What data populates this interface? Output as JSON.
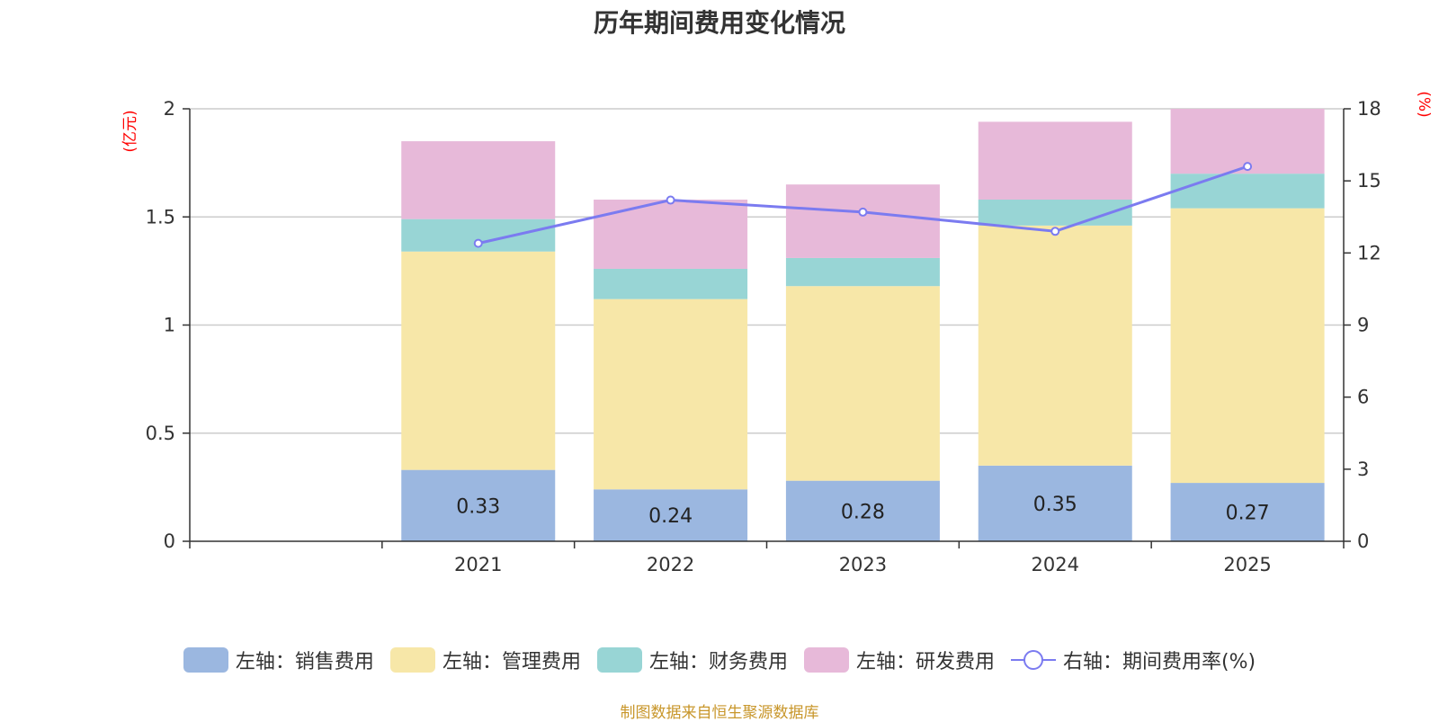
{
  "chart_data": {
    "type": "bar",
    "title": "历年期间费用变化情况",
    "categories": [
      "",
      "2021",
      "2022",
      "2023",
      "2024",
      "2025"
    ],
    "series": [
      {
        "name": "左轴：销售费用",
        "axis": "left",
        "stack": "total",
        "color": "#9bb7e0",
        "values": [
          null,
          0.33,
          0.24,
          0.28,
          0.35,
          0.27
        ],
        "labels": [
          "",
          "0.33",
          "0.24",
          "0.28",
          "0.35",
          "0.27"
        ]
      },
      {
        "name": "左轴：管理费用",
        "axis": "left",
        "stack": "total",
        "color": "#f7e7a8",
        "values": [
          null,
          1.01,
          0.88,
          0.9,
          1.11,
          1.27
        ]
      },
      {
        "name": "左轴：财务费用",
        "axis": "left",
        "stack": "total",
        "color": "#98d5d5",
        "values": [
          null,
          0.15,
          0.14,
          0.13,
          0.12,
          0.16
        ]
      },
      {
        "name": "左轴：研发费用",
        "axis": "left",
        "stack": "total",
        "color": "#e7b9d9",
        "values": [
          null,
          0.36,
          0.32,
          0.34,
          0.36,
          0.3
        ]
      },
      {
        "name": "右轴：期间费用率(%)",
        "axis": "right",
        "type": "line",
        "color": "#7b7bf0",
        "values": [
          null,
          12.4,
          14.2,
          13.7,
          12.9,
          15.6
        ]
      }
    ],
    "y_left": {
      "unit": "(亿元)",
      "ylim": [
        0,
        2
      ],
      "ticks": [
        "0",
        "0.5",
        "1",
        "1.5",
        "2"
      ]
    },
    "y_right": {
      "unit": "(%)",
      "ylim": [
        0,
        18
      ],
      "ticks": [
        "0",
        "3",
        "6",
        "9",
        "12",
        "15",
        "18"
      ]
    },
    "grid": true,
    "legend_position": "bottom"
  },
  "source": "制图数据来自恒生聚源数据库"
}
